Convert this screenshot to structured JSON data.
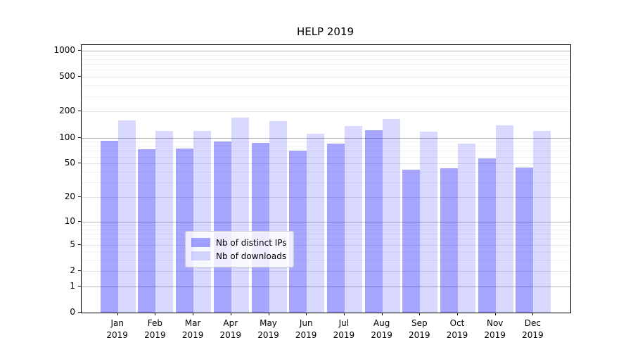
{
  "title": "HELP 2019",
  "chart_data": {
    "type": "bar",
    "title": "HELP 2019",
    "xlabel": "",
    "ylabel": "",
    "yscale": "log1p",
    "ylim": [
      0,
      1160
    ],
    "grid": true,
    "legend_position": "lower-center-inside",
    "categories": [
      "Jan",
      "Feb",
      "Mar",
      "Apr",
      "May",
      "Jun",
      "Jul",
      "Aug",
      "Sep",
      "Oct",
      "Nov",
      "Dec"
    ],
    "category_sublabel": "2019",
    "y_tick_labels": [
      0,
      1,
      2,
      5,
      10,
      20,
      50,
      100,
      200,
      500,
      1000
    ],
    "series": [
      {
        "name": "Nb of distinct IPs",
        "color": "rgba(0,0,255,0.35)",
        "values": [
          92,
          74,
          75,
          90,
          87,
          70,
          86,
          122,
          42,
          44,
          57,
          45
        ]
      },
      {
        "name": "Nb of downloads",
        "color": "rgba(0,0,255,0.15)",
        "values": [
          157,
          119,
          119,
          170,
          156,
          110,
          135,
          163,
          118,
          86,
          140,
          120
        ]
      }
    ],
    "gridline_values": {
      "major": [
        1,
        10,
        100,
        1000
      ],
      "mid": [
        2,
        5,
        20,
        50,
        200,
        500
      ],
      "minor": [
        3,
        4,
        6,
        7,
        8,
        9,
        30,
        40,
        60,
        70,
        80,
        90,
        300,
        400,
        600,
        700,
        800,
        900
      ]
    }
  },
  "legend": {
    "items": [
      {
        "label": "Nb of distinct IPs",
        "color": "rgba(0,0,255,0.35)"
      },
      {
        "label": "Nb of downloads",
        "color": "rgba(0,0,255,0.15)"
      }
    ]
  },
  "colors": {
    "major_grid": "#b3b3b3",
    "mid_grid": "#e4e4e4",
    "minor_grid": "#f2f2f2",
    "axis": "#000000",
    "bar_dark": "rgba(0,0,255,0.35)",
    "bar_light": "rgba(0,0,255,0.15)"
  }
}
